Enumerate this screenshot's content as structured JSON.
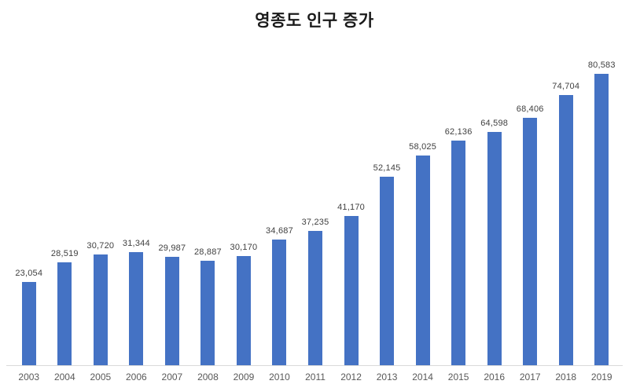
{
  "chart_data": {
    "type": "bar",
    "title": "영종도 인구 증가",
    "categories": [
      "2003",
      "2004",
      "2005",
      "2006",
      "2007",
      "2008",
      "2009",
      "2010",
      "2011",
      "2012",
      "2013",
      "2014",
      "2015",
      "2016",
      "2017",
      "2018",
      "2019"
    ],
    "values": [
      23054,
      28519,
      30720,
      31344,
      29987,
      28887,
      30170,
      34687,
      37235,
      41170,
      52145,
      58025,
      62136,
      64598,
      68406,
      74704,
      80583
    ],
    "value_labels": [
      "23,054",
      "28,519",
      "30,720",
      "31,344",
      "29,987",
      "28,887",
      "30,170",
      "34,687",
      "37,235",
      "41,170",
      "52,145",
      "58,025",
      "62,136",
      "64,598",
      "68,406",
      "74,704",
      "80,583"
    ],
    "xlabel": "",
    "ylabel": "",
    "ylim": [
      0,
      80583
    ],
    "grid": false,
    "legend": false,
    "bar_color": "#4472C4",
    "title_color": "#1a1a1a",
    "value_label_color": "#404040",
    "axis_label_color": "#595959",
    "axis_line_color": "#d9d9d9"
  }
}
